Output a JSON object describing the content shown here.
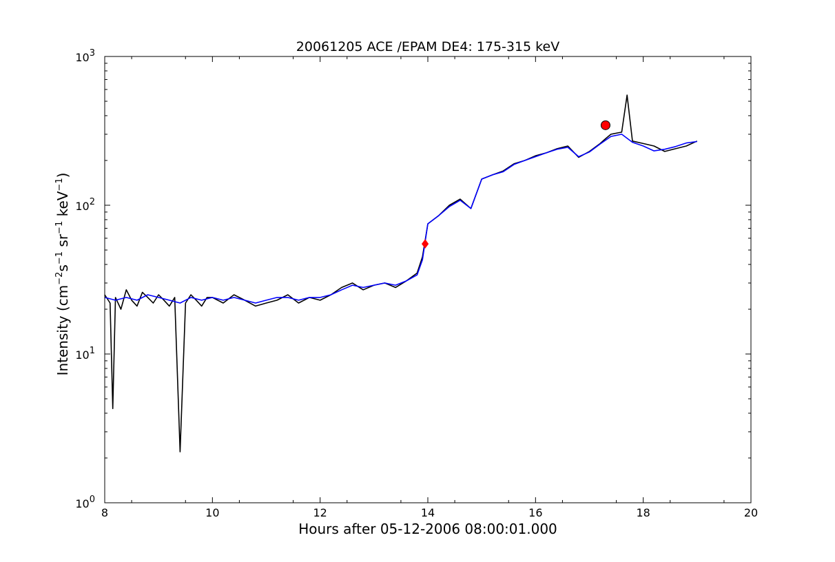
{
  "chart_data": {
    "type": "line",
    "title": "20061205 ACE /EPAM DE4: 175-315 keV",
    "xlabel": "Hours after 05-12-2006 08:00:01.000",
    "ylabel": {
      "prefix": "Intensity (cm",
      "parts": [
        {
          "base": "",
          "sup": "−2"
        },
        {
          "base": "s",
          "sup": "−1"
        },
        {
          "base": " sr",
          "sup": "−1"
        },
        {
          "base": " keV",
          "sup": "−1"
        }
      ],
      "suffix": ")"
    },
    "xlim": [
      8,
      20
    ],
    "ylim": [
      1,
      1000
    ],
    "yscale": "log",
    "grid": false,
    "x_ticks": [
      "8",
      "10",
      "12",
      "14",
      "16",
      "18",
      "20"
    ],
    "y_ticks": [
      {
        "base": "10",
        "exp": "0"
      },
      {
        "base": "10",
        "exp": "1"
      },
      {
        "base": "10",
        "exp": "2"
      },
      {
        "base": "10",
        "exp": "3"
      }
    ],
    "series": [
      {
        "color": "#000000",
        "x": [
          8.0,
          8.1,
          8.15,
          8.2,
          8.3,
          8.4,
          8.5,
          8.6,
          8.7,
          8.8,
          8.9,
          9.0,
          9.1,
          9.2,
          9.3,
          9.4,
          9.5,
          9.6,
          9.7,
          9.8,
          9.9,
          10.0,
          10.2,
          10.4,
          10.6,
          10.8,
          11.0,
          11.2,
          11.4,
          11.6,
          11.8,
          12.0,
          12.2,
          12.4,
          12.6,
          12.8,
          13.0,
          13.2,
          13.4,
          13.6,
          13.8,
          13.9,
          14.0,
          14.2,
          14.4,
          14.6,
          14.8,
          15.0,
          15.2,
          15.4,
          15.6,
          15.8,
          16.0,
          16.2,
          16.4,
          16.6,
          16.8,
          17.0,
          17.2,
          17.3,
          17.4,
          17.6,
          17.7,
          17.8,
          18.0,
          18.2,
          18.4,
          18.6,
          18.8,
          19.0
        ],
        "y": [
          25,
          22,
          4.3,
          24,
          20,
          27,
          23,
          21,
          26,
          24,
          22,
          25,
          23,
          21,
          24,
          2.2,
          22,
          25,
          23,
          21,
          24,
          24,
          22,
          25,
          23,
          21,
          22,
          23,
          25,
          22,
          24,
          23,
          25,
          28,
          30,
          27,
          29,
          30,
          28,
          31,
          35,
          45,
          75,
          85,
          100,
          110,
          95,
          150,
          160,
          170,
          190,
          200,
          215,
          225,
          240,
          250,
          210,
          230,
          260,
          280,
          300,
          310,
          550,
          270,
          260,
          250,
          230,
          240,
          250,
          270
        ]
      },
      {
        "color": "#0000ff",
        "x": [
          8.0,
          8.2,
          8.4,
          8.6,
          8.8,
          9.0,
          9.2,
          9.4,
          9.6,
          9.8,
          10.0,
          10.2,
          10.4,
          10.6,
          10.8,
          11.0,
          11.2,
          11.4,
          11.6,
          11.8,
          12.0,
          12.2,
          12.4,
          12.6,
          12.8,
          13.0,
          13.2,
          13.4,
          13.6,
          13.8,
          13.9,
          14.0,
          14.2,
          14.4,
          14.6,
          14.8,
          15.0,
          15.2,
          15.4,
          15.6,
          15.8,
          16.0,
          16.2,
          16.4,
          16.6,
          16.8,
          17.0,
          17.2,
          17.4,
          17.6,
          17.8,
          18.0,
          18.2,
          18.4,
          18.6,
          18.8,
          19.0
        ],
        "y": [
          24,
          23,
          24,
          23,
          25,
          24,
          23,
          22,
          24,
          23,
          24,
          23,
          24,
          23,
          22,
          23,
          24,
          24,
          23,
          24,
          24,
          25,
          27,
          29,
          28,
          29,
          30,
          29,
          31,
          34,
          43,
          75,
          85,
          98,
          108,
          95,
          150,
          160,
          168,
          188,
          200,
          212,
          225,
          238,
          245,
          212,
          228,
          258,
          290,
          300,
          265,
          250,
          232,
          238,
          248,
          262,
          268
        ]
      }
    ],
    "markers": [
      {
        "x": 13.95,
        "y": 55,
        "shape": "diamond",
        "color": "#ff0000"
      },
      {
        "x": 17.3,
        "y": 345,
        "shape": "circle",
        "color": "#ff0000"
      }
    ]
  }
}
